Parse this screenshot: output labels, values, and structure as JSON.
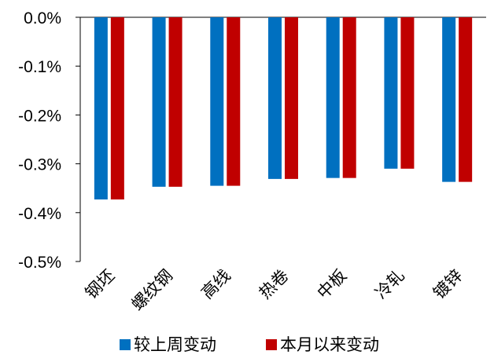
{
  "chart_data": {
    "type": "bar",
    "categories": [
      "钢坯",
      "螺纹钢",
      "高线",
      "热卷",
      "中板",
      "冷轧",
      "镀锌"
    ],
    "series": [
      {
        "name": "较上周变动",
        "color": "#0070C0",
        "values": [
          -0.373,
          -0.347,
          -0.345,
          -0.331,
          -0.329,
          -0.31,
          -0.337
        ]
      },
      {
        "name": "本月以来变动",
        "color": "#C00000",
        "values": [
          -0.373,
          -0.347,
          -0.345,
          -0.331,
          -0.329,
          -0.31,
          -0.337
        ]
      }
    ],
    "ylim": [
      -0.5,
      0.0
    ],
    "y_ticks": [
      "0.0%",
      "-0.1%",
      "-0.2%",
      "-0.3%",
      "-0.4%",
      "-0.5%"
    ],
    "y_tick_values": [
      0.0,
      -0.1,
      -0.2,
      -0.3,
      -0.4,
      -0.5
    ],
    "grid": false,
    "legend_position": "bottom",
    "title": "",
    "xlabel": "",
    "ylabel": ""
  }
}
